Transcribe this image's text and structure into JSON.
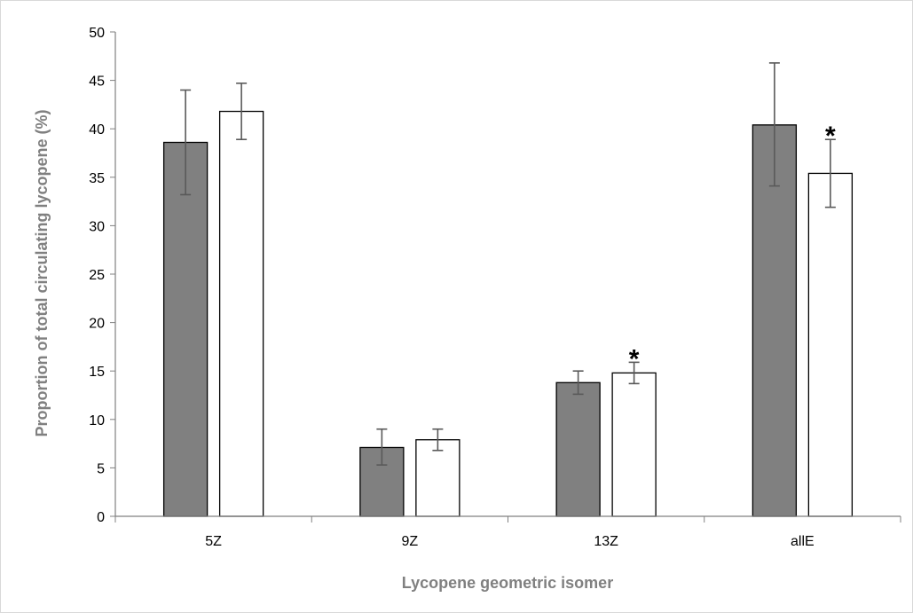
{
  "chart_data": {
    "type": "bar",
    "title": "",
    "xlabel": "Lycopene geometric isomer",
    "ylabel": "Proportion of total circulating lycopene (%)",
    "ylim": [
      0,
      50
    ],
    "yticks": [
      0,
      5,
      10,
      15,
      20,
      25,
      30,
      35,
      40,
      45,
      50
    ],
    "categories": [
      "5Z",
      "9Z",
      "13Z",
      "allE"
    ],
    "grid": false,
    "legend": "none",
    "series": [
      {
        "fill": "#808080",
        "values": [
          38.6,
          7.1,
          13.8,
          40.4
        ],
        "error_low": [
          33.2,
          5.3,
          12.6,
          34.1
        ],
        "error_high": [
          44.0,
          9.0,
          15.0,
          46.8
        ]
      },
      {
        "fill": "#ffffff",
        "values": [
          41.8,
          7.9,
          14.8,
          35.4
        ],
        "error_low": [
          38.9,
          6.8,
          13.7,
          31.9
        ],
        "error_high": [
          44.7,
          9.0,
          15.9,
          38.9
        ]
      }
    ],
    "annotations": [
      {
        "text": "*",
        "series": 1,
        "category": "13Z"
      },
      {
        "text": "*",
        "series": 1,
        "category": "allE"
      }
    ],
    "colors": {
      "axis": "#808080",
      "bar_edge": "#000000",
      "error_bar": "#595959"
    }
  }
}
